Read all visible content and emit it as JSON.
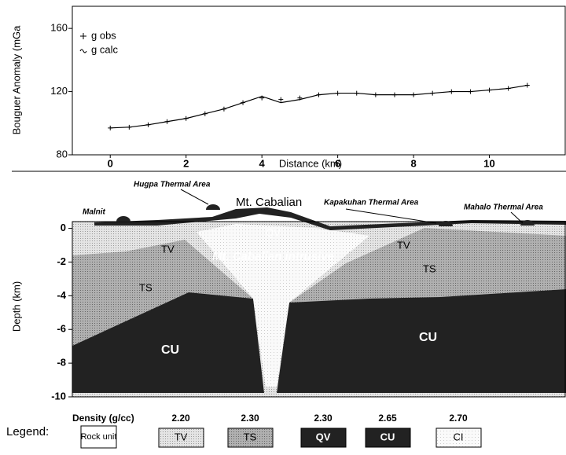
{
  "chart_data": {
    "type": "line",
    "y_label": "Bouguer Anomaly (mGa",
    "x_label": "Distance (km)",
    "x": [
      0,
      0.5,
      1,
      1.5,
      2,
      2.5,
      3,
      3.5,
      4,
      4.5,
      5,
      5.5,
      6,
      6.5,
      7,
      7.5,
      8,
      8.5,
      9,
      9.5,
      10,
      10.5,
      11
    ],
    "series": [
      {
        "name": "g obs",
        "color": "#000000",
        "marker": "plus",
        "values": [
          97,
          97.5,
          99,
          101,
          103,
          106,
          109,
          113,
          116,
          115,
          116,
          118,
          119,
          119,
          118,
          118,
          118,
          119,
          120,
          120,
          121,
          122,
          124
        ]
      },
      {
        "name": "g calc",
        "color": "#000000",
        "marker": "none",
        "values": [
          97,
          97.5,
          99,
          101,
          103,
          106,
          109,
          113,
          117,
          113,
          115,
          118,
          119,
          119,
          118,
          118,
          118,
          119,
          120,
          120,
          121,
          122,
          124
        ]
      }
    ],
    "xlim": [
      -1,
      12
    ],
    "ylim": [
      80,
      174
    ],
    "xticks": [
      0,
      2,
      4,
      6,
      8,
      10
    ],
    "yticks": [
      80,
      120,
      160
    ]
  },
  "cross_section": {
    "y_label": "Depth (km)",
    "ylim": [
      0.4,
      -10
    ],
    "yticks": [
      0,
      -2,
      -4,
      -6,
      -8,
      -10
    ],
    "labels": [
      "Malnit",
      "Hugpa Thermal Area",
      "Mt. Cabalian",
      "Kapakuhan Thermal Area",
      "Mahalo Thermal Area"
    ],
    "units": [
      "QV",
      "TV",
      "TV",
      "Mt. Cabalian intrusive",
      "TS",
      "TS",
      "CU",
      "CU"
    ]
  },
  "legend": {
    "title": "Legend:",
    "density_label": "Density (g/cc)",
    "rock_unit": "Rock unit",
    "items": [
      {
        "density": "2.20",
        "unit": "TV"
      },
      {
        "density": "2.30",
        "unit": "TS"
      },
      {
        "density": "2.30",
        "unit": "QV"
      },
      {
        "density": "2.65",
        "unit": "CU"
      },
      {
        "density": "2.70",
        "unit": "CI"
      }
    ]
  }
}
